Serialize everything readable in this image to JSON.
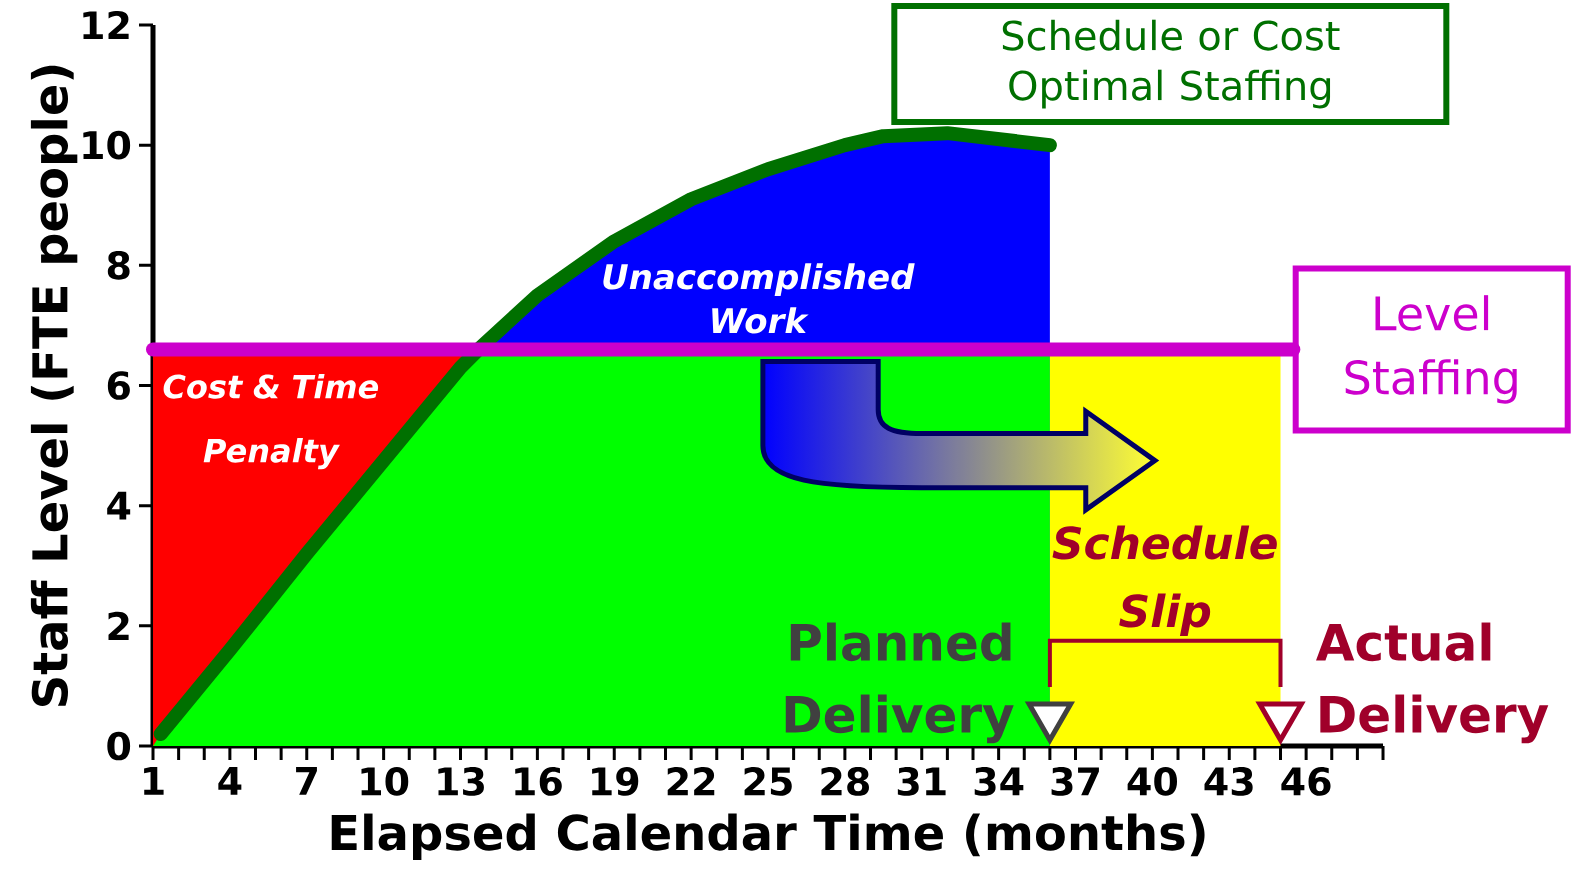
{
  "chart_data": {
    "type": "area",
    "xlabel": "Elapsed Calendar Time (months)",
    "ylabel": "Staff Level (FTE people)",
    "xlim": [
      1,
      49
    ],
    "ylim": [
      0,
      12
    ],
    "xticks": [
      1,
      {
        "value": 2,
        "label": null
      },
      {
        "value": 3,
        "label": null
      },
      4,
      {
        "value": 5,
        "label": null
      },
      {
        "value": 6,
        "label": null
      },
      7,
      {
        "value": 8,
        "label": null
      },
      {
        "value": 9,
        "label": null
      },
      10,
      {
        "value": 11,
        "label": null
      },
      {
        "value": 12,
        "label": null
      },
      13,
      {
        "value": 14,
        "label": null
      },
      {
        "value": 15,
        "label": null
      },
      16,
      {
        "value": 17,
        "label": null
      },
      {
        "value": 18,
        "label": null
      },
      19,
      {
        "value": 20,
        "label": null
      },
      {
        "value": 21,
        "label": null
      },
      22,
      {
        "value": 23,
        "label": null
      },
      {
        "value": 24,
        "label": null
      },
      25,
      {
        "value": 26,
        "label": null
      },
      {
        "value": 27,
        "label": null
      },
      28,
      {
        "value": 29,
        "label": null
      },
      {
        "value": 30,
        "label": null
      },
      31,
      {
        "value": 32,
        "label": null
      },
      {
        "value": 33,
        "label": null
      },
      34,
      {
        "value": 35,
        "label": null
      },
      {
        "value": 36,
        "label": null
      },
      37,
      {
        "value": 38,
        "label": null
      },
      {
        "value": 39,
        "label": null
      },
      40,
      {
        "value": 41,
        "label": null
      },
      {
        "value": 42,
        "label": null
      },
      43,
      {
        "value": 44,
        "label": null
      },
      {
        "value": 45,
        "label": null
      },
      46,
      {
        "value": 47,
        "label": null
      },
      {
        "value": 48,
        "label": null
      },
      {
        "value": 49,
        "label": null
      }
    ],
    "yticks": [
      0,
      2,
      4,
      6,
      8,
      10,
      12
    ],
    "series": [
      {
        "color": "#0000ff",
        "x": [
          13.7,
          16,
          19,
          22,
          25,
          28,
          29.5,
          32,
          36
        ],
        "values": [
          6.6,
          7.5,
          8.4,
          9.1,
          9.6,
          10.0,
          10.15,
          10.2,
          10.0
        ]
      },
      {
        "color": "#ff0000",
        "x": [
          1,
          13.7
        ],
        "values": [
          6.6,
          6.6
        ]
      },
      {
        "color": "#00ff00",
        "x": [
          1,
          1.3,
          4,
          7,
          10,
          13,
          13.7,
          36
        ],
        "values": [
          0,
          0.2,
          1.6,
          3.2,
          4.75,
          6.3,
          6.6,
          6.6
        ]
      },
      {
        "color": "#ffff00",
        "x": [
          36,
          45
        ],
        "values": [
          6.6,
          6.6
        ]
      },
      {
        "type": "line",
        "name": "Schedule or Cost Optimal Staffing",
        "color": "#007000",
        "x": [
          1.3,
          4,
          7,
          10,
          13,
          13.7,
          16,
          19,
          22,
          25,
          28,
          29.5,
          32,
          36
        ],
        "values": [
          0.2,
          1.6,
          3.2,
          4.75,
          6.3,
          6.6,
          7.5,
          8.4,
          9.1,
          9.6,
          10.0,
          10.15,
          10.2,
          10.0
        ]
      },
      {
        "type": "line",
        "name": "Level Staffing",
        "color": "#cc00cc",
        "x": [
          1,
          45.5
        ],
        "values": [
          6.6,
          6.6
        ]
      },
      {
        "type": "scatter",
        "name": "Planned Delivery",
        "color": "#404040",
        "marker": "triangle",
        "x": [
          36
        ],
        "values": [
          0.5
        ]
      },
      {
        "type": "scatter",
        "name": "Actual Delivery",
        "color": "#a0002a",
        "marker": "triangle",
        "x": [
          45
        ],
        "values": [
          0.5
        ]
      }
    ],
    "annotations": [
      "Cost & Time Penalty",
      "Unaccomplished Work",
      "Schedule Slip"
    ]
  }
}
